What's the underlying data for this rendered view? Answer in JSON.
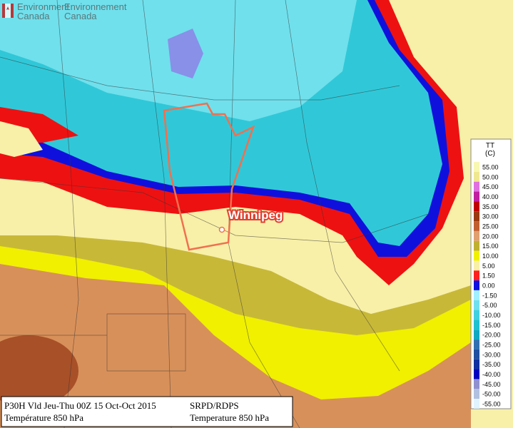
{
  "header": {
    "english": [
      "Environment",
      "Canada"
    ],
    "french": [
      "Environnement",
      "Canada"
    ]
  },
  "city": {
    "label": "Winnipeg"
  },
  "legend": {
    "title": "TT",
    "unit": "(C)",
    "items": [
      {
        "label": "55.00",
        "color": "#f8f8b0"
      },
      {
        "label": "50.00",
        "color": "#f0e890"
      },
      {
        "label": "45.00",
        "color": "#e070e0"
      },
      {
        "label": "40.00",
        "color": "#c020a0"
      },
      {
        "label": "35.00",
        "color": "#c00000"
      },
      {
        "label": "30.00",
        "color": "#9a3a10"
      },
      {
        "label": "25.00",
        "color": "#c06030"
      },
      {
        "label": "20.00",
        "color": "#e0a070"
      },
      {
        "label": "15.00",
        "color": "#c0b030"
      },
      {
        "label": "10.00",
        "color": "#f0f000"
      },
      {
        "label": "5.00",
        "color": "#f8f0a8"
      },
      {
        "label": "1.50",
        "color": "#ff2020"
      },
      {
        "label": "0.00",
        "color": "#1010e0"
      },
      {
        "label": "-1.50",
        "color": "#a0f0ff"
      },
      {
        "label": "-5.00",
        "color": "#70e0f0"
      },
      {
        "label": "-10.00",
        "color": "#40d0e0"
      },
      {
        "label": "-15.00",
        "color": "#20c0d0"
      },
      {
        "label": "-20.00",
        "color": "#10a8c0"
      },
      {
        "label": "-25.00",
        "color": "#3070b0"
      },
      {
        "label": "-30.00",
        "color": "#2050a0"
      },
      {
        "label": "-35.00",
        "color": "#1030a0"
      },
      {
        "label": "-40.00",
        "color": "#0000c0"
      },
      {
        "label": "-45.00",
        "color": "#9090d0"
      },
      {
        "label": "-50.00",
        "color": "#b0c0e0"
      },
      {
        "label": "-55.00",
        "color": "#e0f4ff"
      }
    ]
  },
  "info": {
    "forecast": "P30H Vld Jeu-Thu 00Z 15 Oct-Oct 2015",
    "model": "SRPD/RDPS",
    "field_fr": "Température 850 hPa",
    "field_en": "Temperature 850 hPa"
  }
}
